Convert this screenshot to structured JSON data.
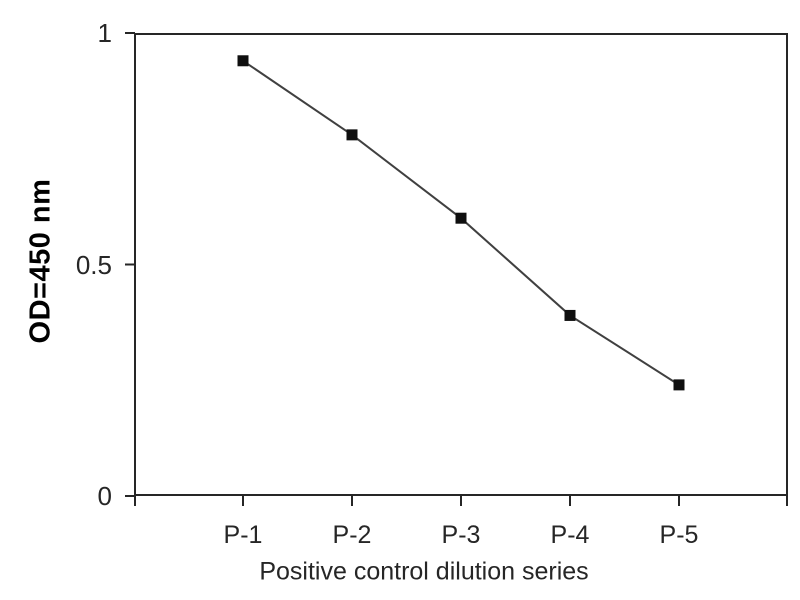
{
  "chart_data": {
    "type": "line",
    "title": "",
    "categories": [
      "P-1",
      "P-2",
      "P-3",
      "P-4",
      "P-5"
    ],
    "series": [
      {
        "name": "Positive control",
        "values": [
          0.94,
          0.78,
          0.6,
          0.39,
          0.24
        ]
      }
    ],
    "xlabel": "Positive control dilution series",
    "ylabel": "OD=450 nm",
    "ylim": [
      0,
      1
    ],
    "y_ticks": [
      {
        "value": 0,
        "label": "0"
      },
      {
        "value": 0.5,
        "label": "0.5"
      },
      {
        "value": 1,
        "label": "1"
      }
    ],
    "grid": false,
    "legend": "none",
    "marker": "square",
    "colors": {
      "line": "#404040",
      "marker": "#0f0f0f",
      "axis": "#262626",
      "background": "#ffffff",
      "text": "#262626"
    }
  }
}
